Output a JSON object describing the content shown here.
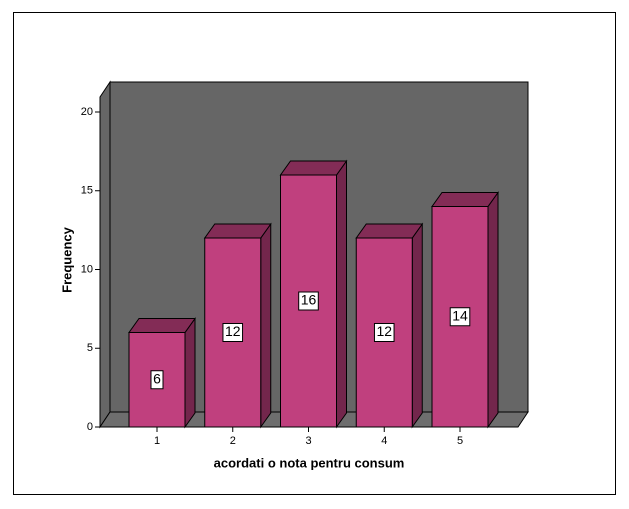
{
  "chart_data": {
    "type": "bar3d",
    "x_label": "acordati o nota pentru consum",
    "y_label": "Frequency",
    "categories": [
      "1",
      "2",
      "3",
      "4",
      "5"
    ],
    "values": [
      6,
      12,
      16,
      12,
      14
    ],
    "color": "#c0407e",
    "ylim": [
      0,
      20
    ],
    "yticks": [
      0,
      5,
      10,
      15,
      20
    ]
  }
}
